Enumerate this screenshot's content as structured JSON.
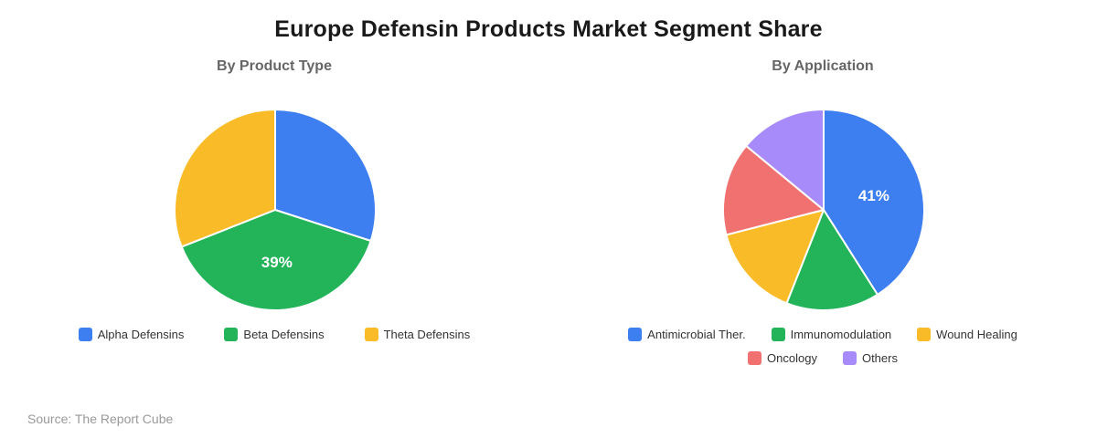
{
  "title": "Europe Defensin Products Market Segment Share",
  "source": "Source: The Report Cube",
  "label_text_color": "#ffffff",
  "slice_border_color": "#ffffff",
  "chart_data": [
    {
      "type": "pie",
      "title": "By Product Type",
      "start_angle_deg": 0,
      "legend_position": "bottom",
      "slices": [
        {
          "name": "Alpha Defensins",
          "value": 30,
          "color": "#3D7EF0",
          "label": ""
        },
        {
          "name": "Beta Defensins",
          "value": 39,
          "color": "#23B45A",
          "label": "39%"
        },
        {
          "name": "Theta Defensins",
          "value": 31,
          "color": "#F9BB28",
          "label": ""
        }
      ]
    },
    {
      "type": "pie",
      "title": "By Application",
      "start_angle_deg": 0,
      "legend_position": "bottom",
      "slices": [
        {
          "name": "Antimicrobial Ther.",
          "value": 41,
          "color": "#3D7EF0",
          "label": "41%"
        },
        {
          "name": "Immunomodulation",
          "value": 15,
          "color": "#23B45A",
          "label": ""
        },
        {
          "name": "Wound Healing",
          "value": 15,
          "color": "#F9BB28",
          "label": ""
        },
        {
          "name": "Oncology",
          "value": 15,
          "color": "#F17070",
          "label": ""
        },
        {
          "name": "Others",
          "value": 14,
          "color": "#A78BFA",
          "label": ""
        }
      ]
    }
  ]
}
